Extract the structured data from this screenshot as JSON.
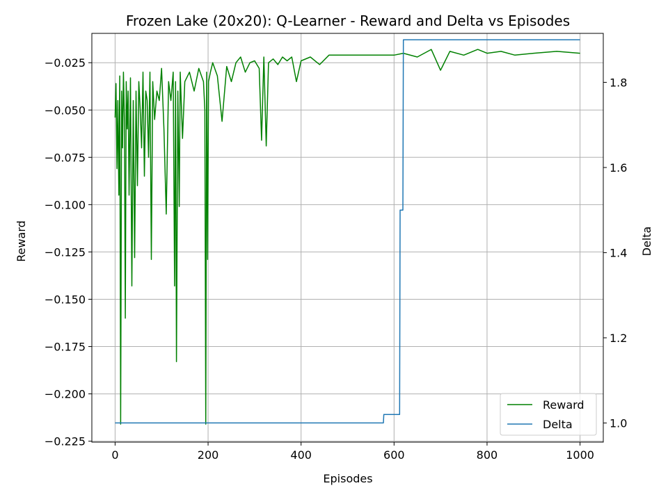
{
  "chart_data": {
    "type": "line",
    "title": "Frozen Lake (20x20): Q-Learner - Reward and Delta vs Episodes",
    "xlabel": "Episodes",
    "ylabel": "Reward",
    "y2label": "Delta",
    "xlim": [
      -50,
      1050
    ],
    "ylim": [
      -0.2255,
      -0.0095
    ],
    "y2lim": [
      0.955,
      1.915
    ],
    "xticks": [
      0,
      200,
      400,
      600,
      800,
      1000
    ],
    "yticks": [
      -0.225,
      -0.2,
      -0.175,
      -0.15,
      -0.125,
      -0.1,
      -0.075,
      -0.05,
      -0.025
    ],
    "ytick_labels": [
      "−0.225",
      "−0.200",
      "−0.175",
      "−0.150",
      "−0.125",
      "−0.100",
      "−0.075",
      "−0.050",
      "−0.025"
    ],
    "y2ticks": [
      1.0,
      1.2,
      1.4,
      1.6,
      1.8
    ],
    "y2tick_labels": [
      "1.0",
      "1.2",
      "1.4",
      "1.6",
      "1.8"
    ],
    "grid": true,
    "legend_position": "bottom-right",
    "series": [
      {
        "name": "Reward",
        "axis": "left",
        "color": "#008000",
        "x": [
          0,
          2,
          4,
          6,
          8,
          10,
          12,
          14,
          16,
          18,
          20,
          22,
          24,
          26,
          28,
          30,
          33,
          36,
          39,
          42,
          45,
          48,
          51,
          54,
          57,
          60,
          63,
          66,
          69,
          72,
          75,
          78,
          81,
          85,
          90,
          95,
          100,
          105,
          110,
          115,
          120,
          125,
          128,
          130,
          132,
          135,
          138,
          140,
          145,
          150,
          160,
          170,
          180,
          190,
          193,
          195,
          197,
          199,
          201,
          205,
          210,
          220,
          230,
          240,
          250,
          260,
          270,
          280,
          290,
          300,
          310,
          315,
          320,
          325,
          330,
          340,
          350,
          360,
          370,
          380,
          390,
          400,
          420,
          440,
          460,
          480,
          500,
          520,
          540,
          560,
          580,
          600,
          620,
          650,
          680,
          700,
          720,
          750,
          780,
          800,
          830,
          860,
          900,
          950,
          1000
        ],
        "y": [
          -0.054,
          -0.036,
          -0.081,
          -0.045,
          -0.095,
          -0.032,
          -0.216,
          -0.04,
          -0.07,
          -0.03,
          -0.055,
          -0.16,
          -0.035,
          -0.06,
          -0.04,
          -0.095,
          -0.033,
          -0.143,
          -0.045,
          -0.128,
          -0.04,
          -0.09,
          -0.035,
          -0.05,
          -0.07,
          -0.03,
          -0.085,
          -0.04,
          -0.045,
          -0.075,
          -0.03,
          -0.129,
          -0.035,
          -0.055,
          -0.04,
          -0.045,
          -0.028,
          -0.06,
          -0.105,
          -0.035,
          -0.045,
          -0.03,
          -0.143,
          -0.035,
          -0.183,
          -0.04,
          -0.101,
          -0.03,
          -0.065,
          -0.035,
          -0.03,
          -0.04,
          -0.028,
          -0.035,
          -0.05,
          -0.216,
          -0.03,
          -0.129,
          -0.035,
          -0.03,
          -0.025,
          -0.032,
          -0.056,
          -0.027,
          -0.035,
          -0.025,
          -0.022,
          -0.03,
          -0.025,
          -0.024,
          -0.028,
          -0.066,
          -0.022,
          -0.069,
          -0.025,
          -0.023,
          -0.026,
          -0.022,
          -0.024,
          -0.022,
          -0.035,
          -0.024,
          -0.022,
          -0.026,
          -0.021,
          -0.021,
          -0.021,
          -0.021,
          -0.021,
          -0.021,
          -0.021,
          -0.021,
          -0.02,
          -0.022,
          -0.018,
          -0.029,
          -0.019,
          -0.021,
          -0.018,
          -0.02,
          -0.019,
          -0.021,
          -0.02,
          -0.019,
          -0.02
        ]
      },
      {
        "name": "Delta",
        "axis": "right",
        "color": "#1f77b4",
        "step": true,
        "x": [
          0,
          577,
          578,
          612,
          613,
          619,
          620,
          1000
        ],
        "y": [
          1.0,
          1.0,
          1.02,
          1.02,
          1.5,
          1.5,
          1.9,
          1.9
        ]
      }
    ]
  }
}
